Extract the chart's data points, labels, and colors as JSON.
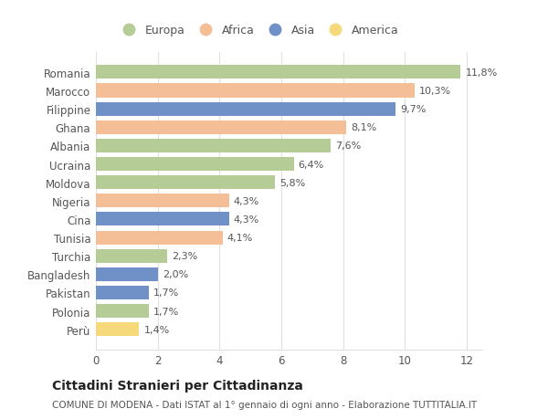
{
  "countries": [
    "Romania",
    "Marocco",
    "Filippine",
    "Ghana",
    "Albania",
    "Ucraina",
    "Moldova",
    "Nigeria",
    "Cina",
    "Tunisia",
    "Turchia",
    "Bangladesh",
    "Pakistan",
    "Polonia",
    "Perù"
  ],
  "values": [
    11.8,
    10.3,
    9.7,
    8.1,
    7.6,
    6.4,
    5.8,
    4.3,
    4.3,
    4.1,
    2.3,
    2.0,
    1.7,
    1.7,
    1.4
  ],
  "labels": [
    "11,8%",
    "10,3%",
    "9,7%",
    "8,1%",
    "7,6%",
    "6,4%",
    "5,8%",
    "4,3%",
    "4,3%",
    "4,1%",
    "2,3%",
    "2,0%",
    "1,7%",
    "1,7%",
    "1,4%"
  ],
  "continents": [
    "Europa",
    "Africa",
    "Asia",
    "Africa",
    "Europa",
    "Europa",
    "Europa",
    "Africa",
    "Asia",
    "Africa",
    "Europa",
    "Asia",
    "Asia",
    "Europa",
    "America"
  ],
  "colors": {
    "Europa": "#b5cc96",
    "Africa": "#f4be96",
    "Asia": "#7090c8",
    "America": "#f5d97a"
  },
  "xlim": [
    0,
    12.5
  ],
  "xticks": [
    0,
    2,
    4,
    6,
    8,
    10,
    12
  ],
  "title": "Cittadini Stranieri per Cittadinanza",
  "subtitle": "COMUNE DI MODENA - Dati ISTAT al 1° gennaio di ogni anno - Elaborazione TUTTITALIA.IT",
  "background_color": "#ffffff",
  "grid_color": "#e0e0e0",
  "text_color": "#555555",
  "label_color": "#555555"
}
